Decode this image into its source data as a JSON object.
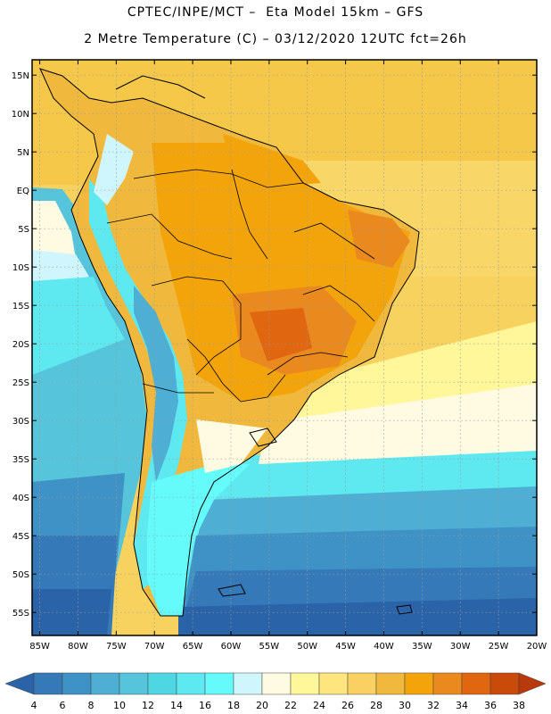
{
  "header": {
    "line1": "CPTEC/INPE/MCT –  Eta Model 15km – GFS",
    "line2": "2 Metre Temperature (C) – 03/12/2020 12UTC fct=26h"
  },
  "map": {
    "lat_labels": [
      "15N",
      "10N",
      "5N",
      "EQ",
      "5S",
      "10S",
      "15S",
      "20S",
      "25S",
      "30S",
      "35S",
      "40S",
      "45S",
      "50S",
      "55S"
    ],
    "lon_labels": [
      "85W",
      "80W",
      "75W",
      "70W",
      "65W",
      "60W",
      "55W",
      "50W",
      "45W",
      "40W",
      "35W",
      "30W",
      "25W",
      "20W"
    ]
  },
  "colorbar": {
    "labels": [
      "4",
      "6",
      "8",
      "10",
      "12",
      "14",
      "16",
      "18",
      "20",
      "22",
      "24",
      "26",
      "28",
      "30",
      "32",
      "34",
      "36",
      "38"
    ],
    "colors": [
      "#2a63a8",
      "#3579b8",
      "#3f92c6",
      "#4eaed3",
      "#56c4db",
      "#4fd6e3",
      "#5ee8ef",
      "#66fbfb",
      "#d0f6fd",
      "#fffbe2",
      "#fff79a",
      "#ffe57d",
      "#f9d061",
      "#f0b83c",
      "#f3a40b",
      "#ea8a1e",
      "#e06610",
      "#c94a09",
      "#b83a0a"
    ]
  },
  "chart_data": {
    "type": "heatmap",
    "title": "2 Metre Temperature (C) – 03/12/2020 12UTC fct=26h",
    "subtitle": "CPTEC/INPE/MCT –  Eta Model 15km – GFS",
    "x_range_deg_lon": [
      -86,
      -20
    ],
    "y_range_deg_lat": [
      -58,
      17
    ],
    "variable_units": "C",
    "colorbar_levels": [
      4,
      6,
      8,
      10,
      12,
      14,
      16,
      18,
      20,
      22,
      24,
      26,
      28,
      30,
      32,
      34,
      36,
      38
    ]
  }
}
